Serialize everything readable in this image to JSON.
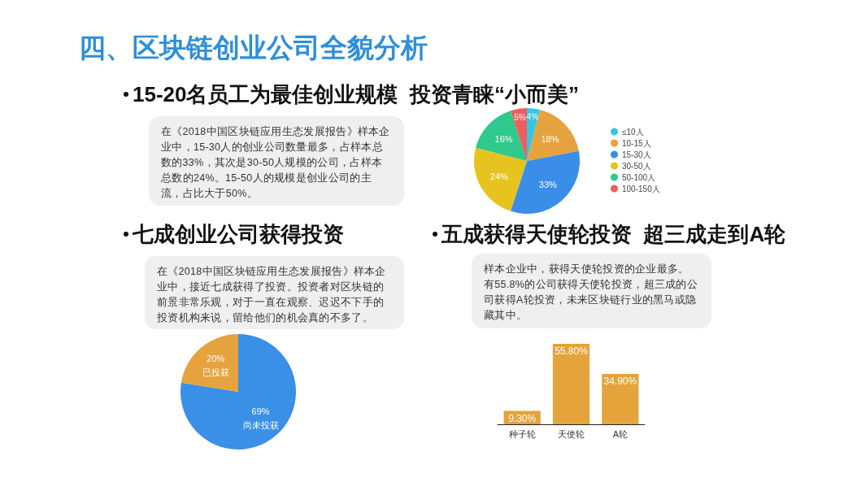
{
  "chart_data": [
    {
      "type": "pie",
      "title": "四、区块链创业公司全貌分析",
      "subtitle": "15-20名员工为最佳创业规模  投资青睐“小而美”",
      "annotations": [
        "在《2018中国区块链应用生态发展报告》样本企业中，15-30人的创业公司数量最多，占样本总数的33%，其次是30-50人规模的公司，占样本总数的24%。15-50人的规模是创业公司的主流，占比大于50%。"
      ],
      "categories": [
        "≤10人",
        "10-15人",
        "15-30人",
        "30-50人",
        "50-100人",
        "100-150人"
      ],
      "values": [
        4,
        18,
        33,
        24,
        16,
        5
      ],
      "value_labels": [
        "4%",
        "18%",
        "33%",
        "24%",
        "16%",
        "5%"
      ],
      "colors": [
        "#36c6e3",
        "#e6a23c",
        "#3b8ee8",
        "#e7c31f",
        "#2ec98b",
        "#ef5d5d"
      ],
      "legend": "right"
    },
    {
      "type": "pie",
      "title": "七成创业公司获得投资",
      "annotations": [
        "在《2018中国区块链应用生态发展报告》样本企业中，接近七成获得了投资。投资者对区块链的前景非常乐观，对于一直在观察、迟迟不下手的投资机构来说，留给他们的机会真的不多了。"
      ],
      "categories": [
        "尚未投获",
        "已投获"
      ],
      "values": [
        69,
        20
      ],
      "value_labels": [
        "69%",
        "20%"
      ],
      "colors": [
        "#3a8fe6",
        "#e6a23c"
      ]
    },
    {
      "type": "bar",
      "title": "五成获得天使轮投资  超三成走到A轮",
      "annotations": [
        "样本企业中，获得天使轮投资的企业最多。",
        "有55.8%的公司获得天使轮投资，超三成的公司获得A轮投资，未来区块链行业的黑马或隐藏其中。"
      ],
      "categories": [
        "种子轮",
        "天使轮",
        "A轮"
      ],
      "values": [
        9.3,
        55.8,
        34.9
      ],
      "value_labels": [
        "9.30%",
        "55.80%",
        "34.90%"
      ],
      "color": "#e4a33b"
    }
  ]
}
